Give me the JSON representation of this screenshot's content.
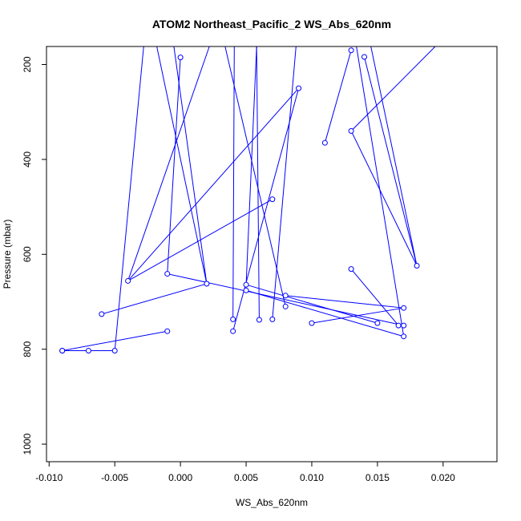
{
  "chart_data": {
    "type": "line",
    "title": "ATOM2 Northeast_Pacific_2 WS_Abs_620nm",
    "xlabel": "WS_Abs_620nm",
    "ylabel": "Pressure (mbar)",
    "xlim": [
      -0.0102,
      0.0241
    ],
    "ylim": [
      1037,
      162
    ],
    "y_reversed": true,
    "x_ticks": [
      -0.01,
      -0.005,
      0.0,
      0.005,
      0.01,
      0.015,
      0.02
    ],
    "x_tick_labels": [
      "-0.010",
      "-0.005",
      "0.000",
      "0.005",
      "0.010",
      "0.015",
      "0.020"
    ],
    "y_ticks": [
      200,
      400,
      600,
      800,
      1000
    ],
    "y_tick_labels": [
      "200",
      "400",
      "600",
      "800",
      "1000"
    ],
    "grid": false,
    "legend": null,
    "series_color": "#0000ff",
    "marker": "open-circle",
    "points": [
      {
        "x": -0.009,
        "y": 803
      },
      {
        "x": -0.007,
        "y": 803
      },
      {
        "x": -0.005,
        "y": 803
      },
      {
        "x": -0.0028,
        "y": 162
      },
      {
        "x": -0.006,
        "y": 726
      },
      {
        "x": 0.002,
        "y": 662
      },
      {
        "x": -0.0018,
        "y": 162
      },
      {
        "x": 0.0,
        "y": 185
      },
      {
        "x": -0.001,
        "y": 641
      },
      {
        "x": 0.017,
        "y": 750
      },
      {
        "x": 0.015,
        "y": 745
      },
      {
        "x": 0.005,
        "y": 664
      },
      {
        "x": 0.0058,
        "y": 162
      },
      {
        "x": 0.004,
        "y": 737
      },
      {
        "x": 0.0041,
        "y": 162
      },
      {
        "x": 0.006,
        "y": 738
      },
      {
        "x": 0.0058,
        "y": 162
      },
      {
        "x": 0.004,
        "y": 762
      },
      {
        "x": 0.009,
        "y": 250
      },
      {
        "x": -0.004,
        "y": 656
      },
      {
        "x": 0.007,
        "y": 484
      },
      {
        "x": -0.001,
        "y": 762
      },
      {
        "x": -0.009,
        "y": 803
      },
      {
        "x": 0.008,
        "y": 710
      },
      {
        "x": 0.0034,
        "y": 162
      },
      {
        "x": 0.007,
        "y": 737
      },
      {
        "x": 0.0088,
        "y": 162
      },
      {
        "x": 0.01,
        "y": 745
      },
      {
        "x": 0.017,
        "y": 713
      },
      {
        "x": 0.008,
        "y": 687
      },
      {
        "x": 0.005,
        "y": 676
      },
      {
        "x": 0.017,
        "y": 773
      },
      {
        "x": 0.0022,
        "y": 162
      },
      {
        "x": -0.0005,
        "y": 162
      },
      {
        "x": 0.013,
        "y": 170
      },
      {
        "x": 0.011,
        "y": 365
      },
      {
        "x": 0.013,
        "y": 631
      },
      {
        "x": 0.0166,
        "y": 750
      },
      {
        "x": 0.014,
        "y": 184
      },
      {
        "x": 0.018,
        "y": 624
      },
      {
        "x": 0.013,
        "y": 340
      },
      {
        "x": 0.0194,
        "y": 162
      },
      {
        "x": 0.0145,
        "y": 162
      },
      {
        "x": 0.0134,
        "y": 162
      }
    ],
    "segments": [
      {
        "x": [
          -0.009,
          -0.007,
          -0.005,
          -0.0028
        ],
        "y": [
          803,
          803,
          803,
          162
        ]
      },
      {
        "x": [
          -0.006,
          0.002,
          -0.0018
        ],
        "y": [
          726,
          662,
          162
        ]
      },
      {
        "x": [
          0.0,
          -0.001,
          0.017
        ],
        "y": [
          185,
          641,
          750
        ]
      },
      {
        "x": [
          0.015,
          0.005,
          0.0058
        ],
        "y": [
          745,
          664,
          162
        ]
      },
      {
        "x": [
          0.004,
          0.0041
        ],
        "y": [
          737,
          162
        ]
      },
      {
        "x": [
          0.006,
          0.0058
        ],
        "y": [
          738,
          162
        ]
      },
      {
        "x": [
          0.004,
          0.009
        ],
        "y": [
          762,
          250
        ]
      },
      {
        "x": [
          0.009,
          -0.004,
          0.007
        ],
        "y": [
          250,
          656,
          484
        ]
      },
      {
        "x": [
          -0.001,
          -0.009
        ],
        "y": [
          762,
          803
        ]
      },
      {
        "x": [
          0.008,
          0.0034
        ],
        "y": [
          710,
          162
        ]
      },
      {
        "x": [
          0.007,
          0.0088
        ],
        "y": [
          737,
          162
        ]
      },
      {
        "x": [
          0.01,
          0.017,
          0.008
        ],
        "y": [
          745,
          713,
          687
        ]
      },
      {
        "x": [
          0.005,
          0.017
        ],
        "y": [
          676,
          773
        ]
      },
      {
        "x": [
          -0.004,
          0.0022
        ],
        "y": [
          656,
          162
        ]
      },
      {
        "x": [
          0.002,
          -0.0005
        ],
        "y": [
          662,
          162
        ]
      },
      {
        "x": [
          0.013,
          0.011
        ],
        "y": [
          170,
          365
        ]
      },
      {
        "x": [
          0.013,
          0.0166
        ],
        "y": [
          631,
          750
        ]
      },
      {
        "x": [
          0.014,
          0.018,
          0.013,
          0.0194
        ],
        "y": [
          184,
          624,
          340,
          162
        ]
      },
      {
        "x": [
          0.018,
          0.0145
        ],
        "y": [
          624,
          162
        ]
      },
      {
        "x": [
          0.017,
          0.0134
        ],
        "y": [
          773,
          162
        ]
      }
    ]
  }
}
